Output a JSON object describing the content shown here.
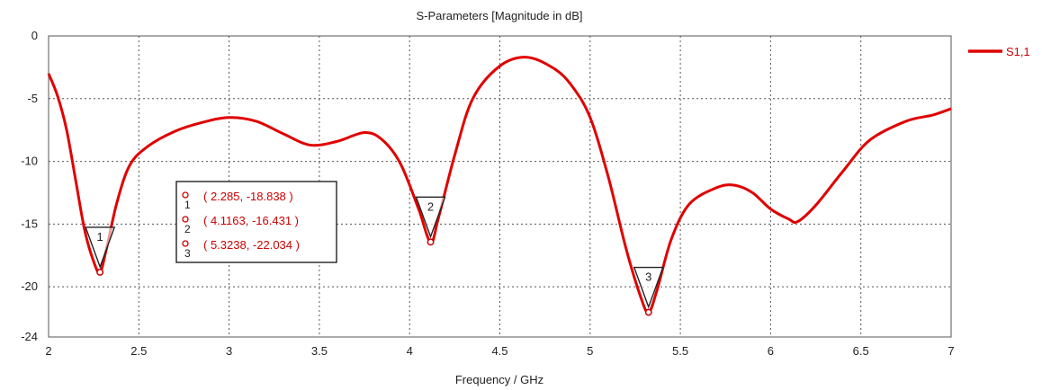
{
  "chart_data": {
    "type": "line",
    "title": "S-Parameters [Magnitude in dB]",
    "xlabel": "Frequency / GHz",
    "ylabel": "",
    "xlim": [
      2,
      7
    ],
    "ylim": [
      -24,
      0
    ],
    "grid": true,
    "legend_position": "right",
    "x_ticks": [
      "2",
      "2.5",
      "3",
      "3.5",
      "4",
      "4.5",
      "5",
      "5.5",
      "6",
      "6.5",
      "7"
    ],
    "y_ticks": [
      "0",
      "-5",
      "-10",
      "-15",
      "-20",
      "-24"
    ],
    "y_tick_values": [
      0,
      -5,
      -10,
      -15,
      -20,
      -24
    ],
    "series": [
      {
        "name": "S1,1",
        "color": "#e00000",
        "x": [
          2.0,
          2.05,
          2.1,
          2.15,
          2.2,
          2.25,
          2.285,
          2.32,
          2.38,
          2.45,
          2.55,
          2.7,
          2.85,
          3.0,
          3.15,
          3.3,
          3.45,
          3.6,
          3.75,
          3.85,
          3.95,
          4.05,
          4.1163,
          4.16,
          4.25,
          4.35,
          4.5,
          4.65,
          4.8,
          4.9,
          5.0,
          5.1,
          5.2,
          5.28,
          5.3238,
          5.37,
          5.45,
          5.55,
          5.7,
          5.8,
          5.9,
          6.0,
          6.1,
          6.15,
          6.25,
          6.4,
          6.55,
          6.75,
          6.9,
          7.0
        ],
        "y": [
          -3.0,
          -4.8,
          -7.5,
          -11.5,
          -15.5,
          -18.0,
          -18.838,
          -17.0,
          -13.2,
          -10.3,
          -8.8,
          -7.6,
          -6.9,
          -6.5,
          -6.8,
          -7.8,
          -8.7,
          -8.4,
          -7.7,
          -8.3,
          -10.2,
          -13.8,
          -16.431,
          -14.5,
          -9.5,
          -5.0,
          -2.4,
          -1.7,
          -2.6,
          -4.0,
          -6.5,
          -11.2,
          -17.0,
          -20.8,
          -22.034,
          -20.3,
          -16.2,
          -13.4,
          -12.1,
          -11.9,
          -12.5,
          -13.8,
          -14.6,
          -14.8,
          -13.5,
          -10.8,
          -8.3,
          -6.8,
          -6.3,
          -5.8
        ]
      }
    ],
    "markers": [
      {
        "id": "1",
        "x": 2.285,
        "y": -18.838,
        "label": "( 2.285, -18.838 )"
      },
      {
        "id": "2",
        "x": 4.1163,
        "y": -16.431,
        "label": "( 4.1163, -16.431 )"
      },
      {
        "id": "3",
        "x": 5.3238,
        "y": -22.034,
        "label": "( 5.3238, -22.034 )"
      }
    ]
  }
}
